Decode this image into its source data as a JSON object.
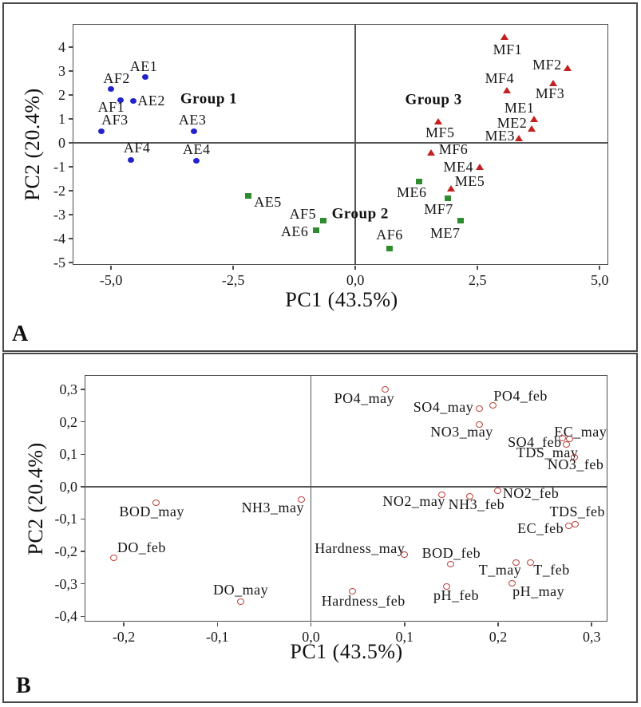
{
  "colors": {
    "frame": "#4d4d4d",
    "panel_border": "#484848",
    "blue_marker": "#2222cc",
    "green_marker": "#2e8b2e",
    "red_marker": "#c42020",
    "open_circle_stroke": "#c0403a",
    "text": "#111111"
  },
  "chart_data": [
    {
      "type": "scatter",
      "panel_label": "A",
      "title": "",
      "xlabel": "PC1 (43.5%)",
      "ylabel": "PC2 (20.4%)",
      "xlim": [
        -5.77,
        5.16
      ],
      "ylim": [
        -5.06,
        4.94
      ],
      "grid": false,
      "zero_lines": true,
      "legend": "none",
      "xticks": [
        -5.0,
        -2.5,
        0.0,
        2.5,
        5.0
      ],
      "xtick_labels": [
        "-5,0",
        "-2,5",
        "0,0",
        "2,5",
        "5,0"
      ],
      "yticks": [
        4,
        3,
        2,
        1,
        0,
        -1,
        -2,
        -3,
        -4,
        -5
      ],
      "ytick_labels": [
        "4",
        "3",
        "2",
        "1",
        "0",
        "-1",
        "-2",
        "-3",
        "-4",
        "-5"
      ],
      "series": [
        {
          "name": "A-stations blue circles (Group 1)",
          "marker": "circle",
          "color": "#2222cc",
          "points": [
            {
              "label": "AE1",
              "x": -4.3,
              "y": 2.75,
              "dx": -2,
              "dy": -14
            },
            {
              "label": "AF2",
              "x": -5.0,
              "y": 2.25,
              "dx": 7,
              "dy": -14
            },
            {
              "label": "AF1",
              "x": -4.8,
              "y": 1.8,
              "dx": -12,
              "dy": 9
            },
            {
              "label": "AE2",
              "x": -4.55,
              "y": 1.75,
              "dx": 23,
              "dy": -1
            },
            {
              "label": "AF3",
              "x": -5.2,
              "y": 0.5,
              "dx": 17,
              "dy": -14
            },
            {
              "label": "AE3",
              "x": -3.3,
              "y": 0.5,
              "dx": -2,
              "dy": -14
            },
            {
              "label": "AF4",
              "x": -4.6,
              "y": -0.7,
              "dx": 8,
              "dy": -15
            },
            {
              "label": "AE4",
              "x": -3.25,
              "y": -0.75,
              "dx": 0,
              "dy": -15
            }
          ]
        },
        {
          "name": "green squares (Group 2)",
          "marker": "square",
          "color": "#2e8b2e",
          "points": [
            {
              "label": "AE5",
              "x": -2.2,
              "y": -2.2,
              "dx": 25,
              "dy": 8
            },
            {
              "label": "AF5",
              "x": -0.65,
              "y": -3.25,
              "dx": -26,
              "dy": -9
            },
            {
              "label": "AE6",
              "x": -0.8,
              "y": -3.65,
              "dx": -27,
              "dy": 1
            },
            {
              "label": "AF6",
              "x": 0.7,
              "y": -4.4,
              "dx": 0,
              "dy": -17
            },
            {
              "label": "ME6",
              "x": 1.3,
              "y": -1.6,
              "dx": -9,
              "dy": 14
            },
            {
              "label": "MF7",
              "x": 1.9,
              "y": -2.3,
              "dx": -12,
              "dy": 14
            },
            {
              "label": "ME7",
              "x": 2.15,
              "y": -3.25,
              "dx": -19,
              "dy": 15
            }
          ]
        },
        {
          "name": "M-stations red triangles (Group 3)",
          "marker": "triangle",
          "color": "#c42020",
          "points": [
            {
              "label": "MF1",
              "x": 3.05,
              "y": 4.45,
              "dx": 4,
              "dy": 16
            },
            {
              "label": "MF2",
              "x": 4.35,
              "y": 3.15,
              "dx": -26,
              "dy": -4
            },
            {
              "label": "MF4",
              "x": 3.1,
              "y": 2.2,
              "dx": -9,
              "dy": -15
            },
            {
              "label": "MF3",
              "x": 4.05,
              "y": 2.5,
              "dx": -4,
              "dy": 13
            },
            {
              "label": "ME1",
              "x": 3.65,
              "y": 1.0,
              "dx": -18,
              "dy": -14
            },
            {
              "label": "ME2",
              "x": 3.6,
              "y": 0.6,
              "dx": -24,
              "dy": -7
            },
            {
              "label": "ME3",
              "x": 3.35,
              "y": 0.2,
              "dx": -24,
              "dy": -3
            },
            {
              "label": "MF5",
              "x": 1.7,
              "y": 0.9,
              "dx": 2,
              "dy": 14
            },
            {
              "label": "MF6",
              "x": 1.55,
              "y": -0.4,
              "dx": 28,
              "dy": -4
            },
            {
              "label": "ME4",
              "x": 2.55,
              "y": -1.0,
              "dx": -27,
              "dy": 0
            },
            {
              "label": "ME5",
              "x": 1.95,
              "y": -1.9,
              "dx": 24,
              "dy": -9
            }
          ]
        }
      ],
      "annotations": [
        {
          "text": "Group 1",
          "x": -3.0,
          "y": 1.85
        },
        {
          "text": "Group 2",
          "x": 0.1,
          "y": -2.95
        },
        {
          "text": "Group 3",
          "x": 1.6,
          "y": 1.8
        }
      ]
    },
    {
      "type": "scatter",
      "panel_label": "B",
      "title": "",
      "xlabel": "PC1 (43.5%)",
      "ylabel": "PC2 (20.4%)",
      "xlim": [
        -0.241,
        0.316
      ],
      "ylim": [
        -0.414,
        0.342
      ],
      "grid": false,
      "zero_lines": true,
      "legend": "none",
      "xticks": [
        -0.2,
        -0.1,
        0.0,
        0.1,
        0.2,
        0.3
      ],
      "xtick_labels": [
        "-0,2",
        "-0,1",
        "0,0",
        "0,1",
        "0,2",
        "0,3"
      ],
      "yticks": [
        0.3,
        0.2,
        0.1,
        0.0,
        -0.1,
        -0.2,
        -0.3,
        -0.4
      ],
      "ytick_labels": [
        "0,3",
        "0,2",
        "0,1",
        "0,0",
        "-0,1",
        "-0,2",
        "-0,3",
        "-0,4"
      ],
      "series": [
        {
          "name": "variable loadings (open circles)",
          "marker": "open-circle",
          "color": "#c0403a",
          "points": [
            {
              "label": "PO4_may",
              "x": 0.08,
              "y": 0.3,
              "dx": -27,
              "dy": 11
            },
            {
              "label": "SO4_may",
              "x": 0.18,
              "y": 0.24,
              "dx": -45,
              "dy": -2
            },
            {
              "label": "PO4_feb",
              "x": 0.195,
              "y": 0.25,
              "dx": 34,
              "dy": -12
            },
            {
              "label": "NO3_may",
              "x": 0.18,
              "y": 0.19,
              "dx": -22,
              "dy": 8
            },
            {
              "label": "EC_may",
              "x": 0.277,
              "y": 0.145,
              "dx": 13,
              "dy": -10
            },
            {
              "label": "SO4_feb",
              "x": 0.269,
              "y": 0.148,
              "dx": -35,
              "dy": 4
            },
            {
              "label": "TDS_may",
              "x": 0.273,
              "y": 0.13,
              "dx": -24,
              "dy": 10
            },
            {
              "label": "NO3_feb",
              "x": 0.282,
              "y": 0.09,
              "dx": 1,
              "dy": 9
            },
            {
              "label": "NO2_may",
              "x": 0.14,
              "y": -0.025,
              "dx": -35,
              "dy": 8
            },
            {
              "label": "NH3_feb",
              "x": 0.17,
              "y": -0.03,
              "dx": 8,
              "dy": 10
            },
            {
              "label": "NO2_feb",
              "x": 0.2,
              "y": -0.015,
              "dx": 41,
              "dy": 2
            },
            {
              "label": "NH3_may",
              "x": -0.01,
              "y": -0.04,
              "dx": -36,
              "dy": 10
            },
            {
              "label": "BOD_may",
              "x": -0.165,
              "y": -0.05,
              "dx": -6,
              "dy": 11
            },
            {
              "label": "DO_feb",
              "x": -0.21,
              "y": -0.22,
              "dx": 34,
              "dy": -13
            },
            {
              "label": "DO_may",
              "x": -0.075,
              "y": -0.355,
              "dx": 0,
              "dy": -15
            },
            {
              "label": "Hardness_may",
              "x": 0.1,
              "y": -0.21,
              "dx": -56,
              "dy": -8
            },
            {
              "label": "BOD_feb",
              "x": 0.15,
              "y": -0.24,
              "dx": 0,
              "dy": -14
            },
            {
              "label": "T_may",
              "x": 0.22,
              "y": -0.235,
              "dx": -21,
              "dy": 9
            },
            {
              "label": "T_feb",
              "x": 0.235,
              "y": -0.235,
              "dx": 26,
              "dy": 9
            },
            {
              "label": "pH_may",
              "x": 0.215,
              "y": -0.3,
              "dx": 33,
              "dy": 9
            },
            {
              "label": "pH_feb",
              "x": 0.145,
              "y": -0.31,
              "dx": 12,
              "dy": 10
            },
            {
              "label": "Hardness_feb",
              "x": 0.045,
              "y": -0.325,
              "dx": 13,
              "dy": 11
            },
            {
              "label": "TDS_feb",
              "x": 0.283,
              "y": -0.118,
              "dx": 2,
              "dy": -17
            },
            {
              "label": "EC_feb",
              "x": 0.276,
              "y": -0.123,
              "dx": -36,
              "dy": 2
            }
          ]
        }
      ],
      "annotations": []
    }
  ]
}
